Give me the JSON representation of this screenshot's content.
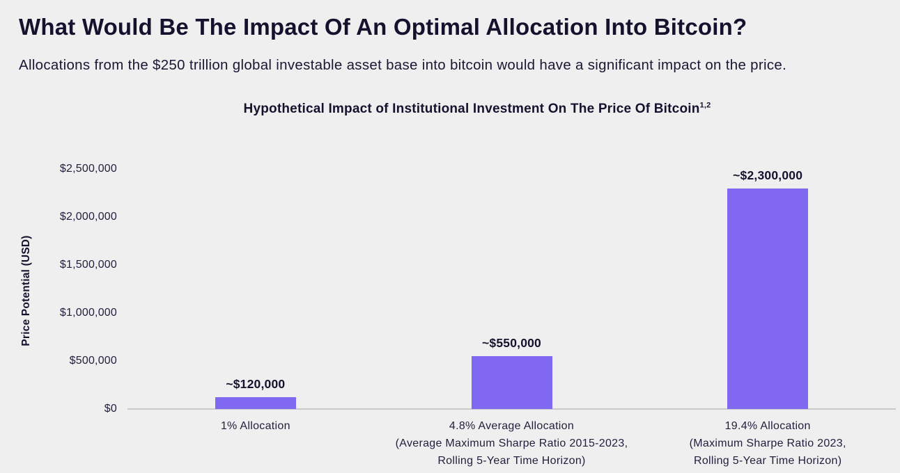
{
  "header": {
    "title": "What Would Be The Impact Of An Optimal Allocation Into Bitcoin?",
    "subtitle": "Allocations from the $250 trillion global investable asset base into bitcoin would have a significant impact on the price."
  },
  "chart_data": {
    "type": "bar",
    "title": "Hypothetical Impact of Institutional Investment On The Price Of Bitcoin",
    "title_superscript": "1,2",
    "xlabel": "",
    "ylabel": "Price Potential (USD)",
    "ylim": [
      0,
      2500000
    ],
    "grid": false,
    "legend": "none",
    "bar_color": "#8168f0",
    "yticks": [
      {
        "value": 2500000,
        "label": "$2,500,000"
      },
      {
        "value": 2000000,
        "label": "$2,000,000"
      },
      {
        "value": 1500000,
        "label": "$1,500,000"
      },
      {
        "value": 1000000,
        "label": "$1,000,000"
      },
      {
        "value": 500000,
        "label": "$500,000"
      },
      {
        "value": 0,
        "label": "$0"
      }
    ],
    "categories": [
      "1% Allocation",
      "4.8% Average Allocation (Average Maximum Sharpe Ratio 2015-2023, Rolling 5-Year Time Horizon)",
      "19.4% Allocation (Maximum Sharpe Ratio 2023, Rolling 5-Year Time Horizon)"
    ],
    "category_lines": [
      [
        "1% Allocation"
      ],
      [
        "4.8% Average Allocation",
        "(Average Maximum Sharpe Ratio 2015-2023,",
        "Rolling 5-Year Time Horizon)"
      ],
      [
        "19.4% Allocation",
        "(Maximum Sharpe Ratio 2023,",
        "Rolling 5-Year Time Horizon)"
      ]
    ],
    "values": [
      120000,
      550000,
      2300000
    ],
    "value_labels": [
      "~$120,000",
      "~$550,000",
      "~$2,300,000"
    ]
  },
  "colors": {
    "background": "#f0efef",
    "bar": "#8168f0",
    "heading_text": "#15122e",
    "body_text": "#211e3c",
    "axis_line": "#c9c8cd"
  }
}
